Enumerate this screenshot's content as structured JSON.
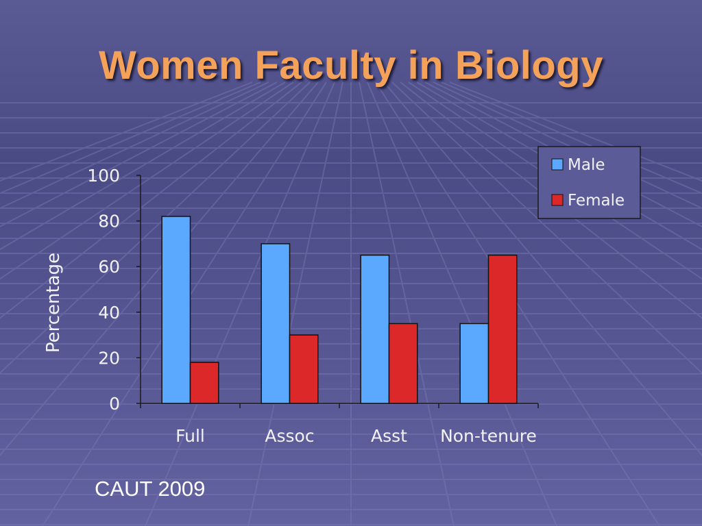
{
  "slide": {
    "title": "Women Faculty in Biology",
    "source": "CAUT 2009"
  },
  "colors": {
    "background": "#5f5f9b",
    "title": "#f4a25a",
    "male": "#5aa8ff",
    "female": "#dc2828"
  },
  "chart_data": {
    "type": "bar",
    "categories": [
      "Full",
      "Assoc",
      "Asst",
      "Non-tenure"
    ],
    "series": [
      {
        "name": "Male",
        "values": [
          82,
          70,
          65,
          35
        ]
      },
      {
        "name": "Female",
        "values": [
          18,
          30,
          35,
          65
        ]
      }
    ],
    "ylabel": "Percentage",
    "ylim": [
      0,
      100
    ],
    "yticks": [
      0,
      20,
      40,
      60,
      80,
      100
    ],
    "grid": false,
    "legend_position": "top-right"
  }
}
